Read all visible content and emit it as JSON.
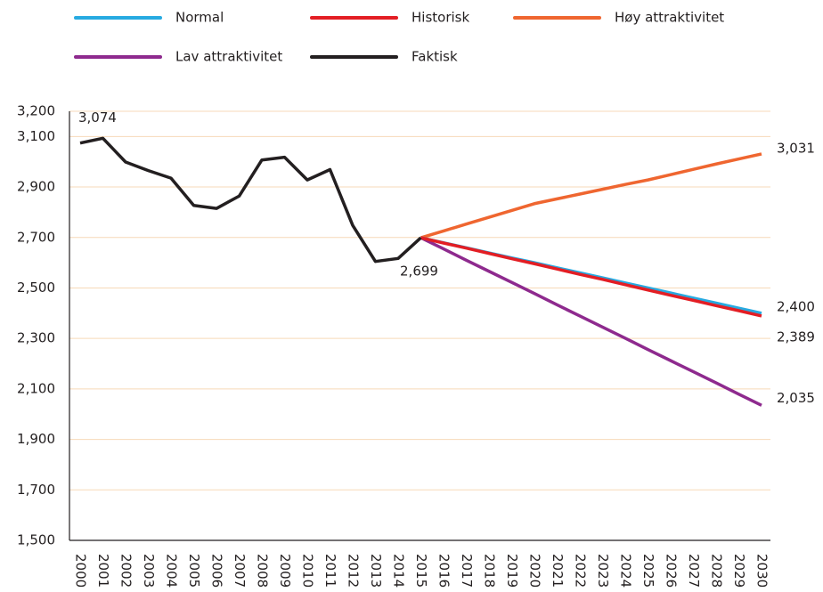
{
  "chart_data": {
    "type": "line",
    "categories": [
      "2000",
      "2001",
      "2002",
      "2003",
      "2004",
      "2005",
      "2006",
      "2007",
      "2008",
      "2009",
      "2010",
      "2011",
      "2012",
      "2013",
      "2014",
      "2015",
      "2016",
      "2017",
      "2018",
      "2019",
      "2020",
      "2021",
      "2022",
      "2023",
      "2024",
      "2025",
      "2026",
      "2027",
      "2028",
      "2029",
      "2030"
    ],
    "ylim": [
      1500,
      3200
    ],
    "yticks": [
      {
        "value": 1500,
        "label": "1,500"
      },
      {
        "value": 1700,
        "label": "1,700"
      },
      {
        "value": 1900,
        "label": "1,900"
      },
      {
        "value": 2100,
        "label": "2,100"
      },
      {
        "value": 2300,
        "label": "2,300"
      },
      {
        "value": 2500,
        "label": "2,500"
      },
      {
        "value": 2700,
        "label": "2,700"
      },
      {
        "value": 2900,
        "label": "2,900"
      },
      {
        "value": 3100,
        "label": "3,100"
      },
      {
        "value": 3200,
        "label": "3,200"
      }
    ],
    "grid": true,
    "series": [
      {
        "name": "Normal",
        "color": "#27aae1",
        "values": [
          null,
          null,
          null,
          null,
          null,
          null,
          null,
          null,
          null,
          null,
          null,
          null,
          null,
          null,
          null,
          2699,
          2679,
          2659,
          2639,
          2619,
          2600,
          2580,
          2560,
          2540,
          2520,
          2500,
          2480,
          2460,
          2440,
          2420,
          2400
        ],
        "value_labels": [
          null,
          null,
          null,
          null,
          null,
          null,
          null,
          null,
          null,
          null,
          null,
          null,
          null,
          null,
          null,
          null,
          null,
          null,
          null,
          null,
          null,
          null,
          null,
          null,
          null,
          null,
          null,
          null,
          null,
          null,
          "2,400"
        ]
      },
      {
        "name": "Historisk",
        "color": "#e31e24",
        "values": [
          null,
          null,
          null,
          null,
          null,
          null,
          null,
          null,
          null,
          null,
          null,
          null,
          null,
          null,
          null,
          2699,
          2678,
          2658,
          2637,
          2616,
          2596,
          2575,
          2554,
          2534,
          2513,
          2492,
          2471,
          2451,
          2430,
          2410,
          2389
        ],
        "value_labels": [
          null,
          null,
          null,
          null,
          null,
          null,
          null,
          null,
          null,
          null,
          null,
          null,
          null,
          null,
          null,
          null,
          null,
          null,
          null,
          null,
          null,
          null,
          null,
          null,
          null,
          null,
          null,
          null,
          null,
          null,
          "2,389"
        ]
      },
      {
        "name": "Høy attraktivitet",
        "color": "#ef6630",
        "values": [
          null,
          null,
          null,
          null,
          null,
          null,
          null,
          null,
          null,
          null,
          null,
          null,
          null,
          null,
          null,
          2699,
          2726,
          2753,
          2780,
          2807,
          2834,
          2853,
          2872,
          2891,
          2910,
          2928,
          2949,
          2970,
          2991,
          3011,
          3031
        ],
        "value_labels": [
          null,
          null,
          null,
          null,
          null,
          null,
          null,
          null,
          null,
          null,
          null,
          null,
          null,
          null,
          null,
          null,
          null,
          null,
          null,
          null,
          null,
          null,
          null,
          null,
          null,
          null,
          null,
          null,
          null,
          null,
          "3,031"
        ]
      },
      {
        "name": "Lav attraktivitet",
        "color": "#8e2a8e",
        "values": [
          null,
          null,
          null,
          null,
          null,
          null,
          null,
          null,
          null,
          null,
          null,
          null,
          null,
          null,
          null,
          2699,
          2655,
          2610,
          2566,
          2522,
          2478,
          2433,
          2389,
          2345,
          2301,
          2256,
          2212,
          2168,
          2124,
          2079,
          2035
        ],
        "value_labels": [
          null,
          null,
          null,
          null,
          null,
          null,
          null,
          null,
          null,
          null,
          null,
          null,
          null,
          null,
          null,
          null,
          null,
          null,
          null,
          null,
          null,
          null,
          null,
          null,
          null,
          null,
          null,
          null,
          null,
          null,
          "2,035"
        ]
      },
      {
        "name": "Faktisk",
        "color": "#231f20",
        "values": [
          3074,
          3093,
          2999,
          2965,
          2935,
          2827,
          2815,
          2864,
          3007,
          3018,
          2928,
          2969,
          2748,
          2605,
          2617,
          2699,
          null,
          null,
          null,
          null,
          null,
          null,
          null,
          null,
          null,
          null,
          null,
          null,
          null,
          null,
          null
        ],
        "value_labels": [
          "3,074",
          null,
          null,
          null,
          null,
          null,
          null,
          null,
          null,
          null,
          null,
          null,
          null,
          null,
          null,
          "2,699",
          null,
          null,
          null,
          null,
          null,
          null,
          null,
          null,
          null,
          null,
          null,
          null,
          null,
          null,
          null
        ]
      }
    ]
  }
}
